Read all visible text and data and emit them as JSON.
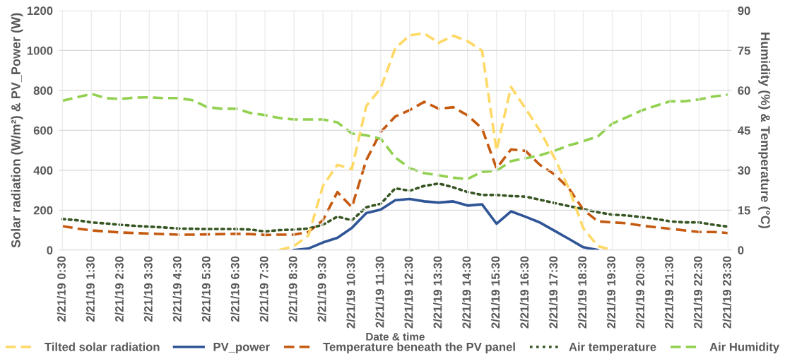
{
  "chart_data": {
    "type": "line",
    "xlabel": "Date & time",
    "ylabel": "Solar radiation (W/m²) & PV_Power (W)",
    "y2label": "Humidity (%) & Temperature (°C)",
    "categories": [
      "2/21/19 0:30",
      null,
      "2/21/19 1:30",
      null,
      "2/21/19 2:30",
      null,
      "2/21/19 3:30",
      null,
      "2/21/19 4:30",
      null,
      "2/21/19 5:30",
      null,
      "2/21/19 6:30",
      null,
      "2/21/19 7:30",
      null,
      "2/21/19 8:30",
      null,
      "2/21/19 9:30",
      null,
      "2/21/19 10:30",
      null,
      "2/21/19 11:30",
      null,
      "2/21/19 12:30",
      null,
      "2/21/19 13:30",
      null,
      "2/21/19 14:30",
      null,
      "2/21/19 15:30",
      null,
      "2/21/19 16:30",
      null,
      "2/21/19 17:30",
      null,
      "2/21/19 18:30",
      null,
      "2/21/19 19:30",
      null,
      "2/21/19 20:30",
      null,
      "2/21/19 21:30",
      null,
      "2/21/19 22:30",
      null,
      "2/21/19 23:30"
    ],
    "series": [
      {
        "name": "Tilted solar radiation",
        "color": "#ffd966",
        "line_style": "dashed",
        "values": [
          null,
          null,
          null,
          null,
          null,
          null,
          null,
          null,
          null,
          null,
          null,
          null,
          null,
          null,
          null,
          0,
          20,
          73,
          321,
          427,
          406,
          722,
          811,
          1011,
          1076,
          1086,
          1038,
          1074,
          1047,
          999,
          498,
          817,
          710,
          598,
          463,
          309,
          109,
          20,
          0,
          null,
          null,
          null,
          null,
          null,
          null,
          null,
          null
        ]
      },
      {
        "name": "PV_power",
        "color": "#2f5597",
        "line_style": "solid",
        "values": [
          null,
          null,
          null,
          null,
          null,
          null,
          null,
          null,
          null,
          null,
          null,
          null,
          null,
          null,
          null,
          null,
          0,
          8,
          38,
          61,
          111,
          185,
          203,
          250,
          256,
          244,
          238,
          244,
          223,
          229,
          132,
          194,
          167,
          138,
          97,
          56,
          14,
          0,
          null,
          null,
          null,
          null,
          null,
          null,
          null,
          null,
          null
        ]
      },
      {
        "name": "Temperature beneath the PV panel",
        "color": "#c55a11",
        "line_style": "dashed",
        "axis": "y2",
        "values": [
          9.0,
          8.1,
          7.4,
          7.0,
          6.6,
          6.4,
          6.2,
          6.0,
          5.8,
          5.8,
          5.9,
          6.0,
          6.1,
          6.0,
          5.7,
          5.8,
          5.8,
          6.8,
          11.2,
          21.8,
          16.1,
          33.8,
          44.4,
          50.2,
          52.6,
          55.7,
          53.1,
          53.7,
          50.6,
          45.7,
          30.7,
          37.8,
          37.3,
          32.0,
          28.5,
          23.2,
          15.2,
          10.8,
          10.4,
          10.1,
          9.2,
          8.6,
          8.0,
          7.4,
          6.8,
          6.8,
          6.4
        ]
      },
      {
        "name": "Air temperature",
        "color": "#375623",
        "line_style": "dotted",
        "axis": "y2",
        "values": [
          11.7,
          11.2,
          10.4,
          10.0,
          9.5,
          9.1,
          8.8,
          8.5,
          8.1,
          8.0,
          7.9,
          7.9,
          7.9,
          7.7,
          7.0,
          7.5,
          7.7,
          8.1,
          9.5,
          12.6,
          11.2,
          16.1,
          17.4,
          23.2,
          22.3,
          24.1,
          25.0,
          23.6,
          21.8,
          20.7,
          20.7,
          20.3,
          20.1,
          18.9,
          17.7,
          16.5,
          15.4,
          14.2,
          13.3,
          13.0,
          12.4,
          11.7,
          10.8,
          10.4,
          10.4,
          9.5,
          8.8
        ]
      },
      {
        "name": "Air Humidity",
        "color": "#92d050",
        "line_style": "dashed",
        "axis": "y2",
        "values": [
          56.1,
          57.4,
          58.7,
          57.1,
          56.8,
          57.3,
          57.4,
          57.1,
          57.1,
          56.3,
          53.7,
          53.1,
          53.1,
          51.5,
          50.7,
          49.6,
          49.1,
          49.1,
          49.1,
          48.0,
          43.8,
          43.1,
          41.8,
          34.8,
          30.8,
          28.9,
          28.1,
          27.2,
          26.7,
          29.4,
          29.8,
          33.4,
          34.5,
          35.6,
          37.3,
          39.3,
          40.9,
          42.7,
          47.5,
          49.9,
          52.4,
          54.2,
          55.9,
          55.9,
          56.6,
          57.7,
          58.4
        ]
      }
    ],
    "ylim": [
      0,
      1200
    ],
    "yticks": [
      0,
      200,
      400,
      600,
      800,
      1000,
      1200
    ],
    "y2lim": [
      0,
      90
    ],
    "y2ticks": [
      0,
      15,
      30,
      45,
      60,
      75,
      90
    ],
    "grid": true,
    "legend": "bottom"
  }
}
